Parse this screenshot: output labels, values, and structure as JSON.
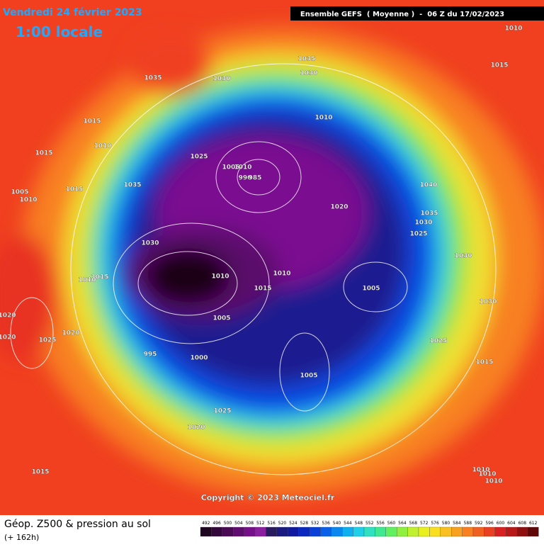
{
  "header": {
    "date": "Vendredi 24 février 2023",
    "time": "1:00 locale",
    "run": "Ensemble GEFS  ( Moyenne )  -  06 Z du 17/02/2023"
  },
  "map": {
    "isobar_labels": [
      "1010",
      "1015",
      "1035",
      "1030",
      "1035",
      "1030",
      "1015",
      "1010",
      "1015",
      "1010",
      "1025",
      "1005",
      "1010",
      "990",
      "985",
      "1035",
      "1005",
      "1010",
      "1015",
      "1040",
      "1020",
      "1035",
      "1030",
      "1025",
      "1030",
      "1030",
      "1015",
      "1010",
      "1010",
      "1010",
      "1015",
      "1005",
      "1030",
      "1020",
      "1005",
      "1020",
      "1020",
      "1025",
      "1025",
      "995",
      "1000",
      "1015",
      "1005",
      "1025",
      "1020",
      "1015",
      "1010",
      "1010",
      "1010"
    ],
    "copyright": "Copyright © 2023 Meteociel.fr"
  },
  "footer": {
    "title": "Géop. Z500 & pression au sol",
    "lead": "(+ 162h)"
  },
  "legend": {
    "ticks": [
      492,
      496,
      500,
      504,
      508,
      512,
      516,
      520,
      524,
      528,
      532,
      536,
      540,
      544,
      548,
      552,
      556,
      560,
      564,
      568,
      572,
      576,
      580,
      584,
      588,
      592,
      596,
      600,
      604,
      608,
      612
    ],
    "colors": [
      "#1e0520",
      "#33083a",
      "#4a0b55",
      "#600d70",
      "#76108a",
      "#8a1fa0",
      "#2a1a5e",
      "#1a1a80",
      "#101aa0",
      "#0a28c0",
      "#0a40d8",
      "#0a60e8",
      "#0a88f0",
      "#10b0f0",
      "#20d0e8",
      "#30e0c0",
      "#40e890",
      "#60f060",
      "#90f040",
      "#c0f030",
      "#e8f020",
      "#f8e020",
      "#f8c020",
      "#f8a020",
      "#f88020",
      "#f06020",
      "#e84020",
      "#d82020",
      "#b81818",
      "#901010",
      "#600808"
    ]
  }
}
